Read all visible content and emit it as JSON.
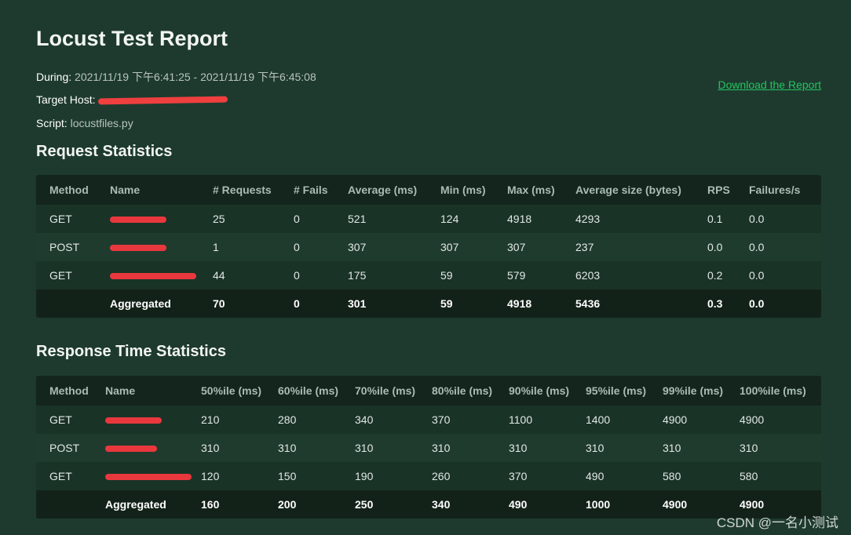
{
  "title": "Locust Test Report",
  "meta": {
    "during_label": "During:",
    "during_value": "2021/11/19 下午6:41:25 - 2021/11/19 下午6:45:08",
    "host_label": "Target Host:",
    "script_label": "Script:",
    "script_value": "locustfiles.py"
  },
  "download_link": "Download the Report",
  "request_stats": {
    "heading": "Request Statistics",
    "headers": [
      "Method",
      "Name",
      "# Requests",
      "# Fails",
      "Average (ms)",
      "Min (ms)",
      "Max (ms)",
      "Average size (bytes)",
      "RPS",
      "Failures/s"
    ],
    "rows": [
      [
        "GET",
        "",
        "25",
        "0",
        "521",
        "124",
        "4918",
        "4293",
        "0.1",
        "0.0"
      ],
      [
        "POST",
        "",
        "1",
        "0",
        "307",
        "307",
        "307",
        "237",
        "0.0",
        "0.0"
      ],
      [
        "GET",
        "",
        "44",
        "0",
        "175",
        "59",
        "579",
        "6203",
        "0.2",
        "0.0"
      ]
    ],
    "aggregated": [
      "",
      "Aggregated",
      "70",
      "0",
      "301",
      "59",
      "4918",
      "5436",
      "0.3",
      "0.0"
    ]
  },
  "response_stats": {
    "heading": "Response Time Statistics",
    "headers": [
      "Method",
      "Name",
      "50%ile (ms)",
      "60%ile (ms)",
      "70%ile (ms)",
      "80%ile (ms)",
      "90%ile (ms)",
      "95%ile (ms)",
      "99%ile (ms)",
      "100%ile (ms)"
    ],
    "rows": [
      [
        "GET",
        "",
        "210",
        "280",
        "340",
        "370",
        "1100",
        "1400",
        "4900",
        "4900"
      ],
      [
        "POST",
        "",
        "310",
        "310",
        "310",
        "310",
        "310",
        "310",
        "310",
        "310"
      ],
      [
        "GET",
        "",
        "120",
        "150",
        "190",
        "260",
        "370",
        "490",
        "580",
        "580"
      ]
    ],
    "aggregated": [
      "",
      "Aggregated",
      "160",
      "200",
      "250",
      "340",
      "490",
      "1000",
      "4900",
      "4900"
    ]
  },
  "watermark": "CSDN @一名小测试",
  "colors": {
    "background": "#1e3a2f",
    "link": "#22c55e",
    "redaction": "#ef3f3f"
  }
}
